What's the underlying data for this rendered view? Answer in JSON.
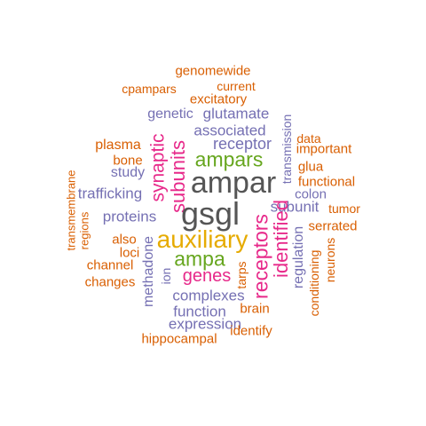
{
  "words": [
    {
      "text": "genomewide",
      "tier": "c1"
    },
    {
      "text": "cpampars",
      "tier": "c1"
    },
    {
      "text": "current",
      "tier": "c1"
    },
    {
      "text": "excitatory",
      "tier": "c1"
    },
    {
      "text": "genetic",
      "tier": "c2"
    },
    {
      "text": "glutamate",
      "tier": "c2"
    },
    {
      "text": "associated",
      "tier": "c2"
    },
    {
      "text": "transmission",
      "tier": "c2"
    },
    {
      "text": "data",
      "tier": "c1"
    },
    {
      "text": "plasma",
      "tier": "c1"
    },
    {
      "text": "receptor",
      "tier": "c2"
    },
    {
      "text": "important",
      "tier": "c1"
    },
    {
      "text": "bone",
      "tier": "c1"
    },
    {
      "text": "ampars",
      "tier": "c4"
    },
    {
      "text": "glua",
      "tier": "c1"
    },
    {
      "text": "synaptic",
      "tier": "c3"
    },
    {
      "text": "study",
      "tier": "c2"
    },
    {
      "text": "transmembrane",
      "tier": "c1"
    },
    {
      "text": "ampar",
      "tier": "c6"
    },
    {
      "text": "functional",
      "tier": "c1"
    },
    {
      "text": "subunits",
      "tier": "c3"
    },
    {
      "text": "trafficking",
      "tier": "c2"
    },
    {
      "text": "colon",
      "tier": "c2"
    },
    {
      "text": "subunit",
      "tier": "c2"
    },
    {
      "text": "tumor",
      "tier": "c1"
    },
    {
      "text": "regions",
      "tier": "c1"
    },
    {
      "text": "proteins",
      "tier": "c2"
    },
    {
      "text": "gsgl",
      "tier": "c6"
    },
    {
      "text": "identified",
      "tier": "c3"
    },
    {
      "text": "serrated",
      "tier": "c1"
    },
    {
      "text": "also",
      "tier": "c1"
    },
    {
      "text": "auxiliary",
      "tier": "c5"
    },
    {
      "text": "receptors",
      "tier": "c3"
    },
    {
      "text": "regulation",
      "tier": "c2"
    },
    {
      "text": "loci",
      "tier": "c1"
    },
    {
      "text": "methadone",
      "tier": "c2"
    },
    {
      "text": "ampa",
      "tier": "c4"
    },
    {
      "text": "channel",
      "tier": "c1"
    },
    {
      "text": "genes",
      "tier": "c3"
    },
    {
      "text": "neurons",
      "tier": "c1"
    },
    {
      "text": "ion",
      "tier": "c2"
    },
    {
      "text": "tarps",
      "tier": "c1"
    },
    {
      "text": "conditioning",
      "tier": "c1"
    },
    {
      "text": "changes",
      "tier": "c1"
    },
    {
      "text": "complexes",
      "tier": "c2"
    },
    {
      "text": "function",
      "tier": "c2"
    },
    {
      "text": "brain",
      "tier": "c1"
    },
    {
      "text": "expression",
      "tier": "c2"
    },
    {
      "text": "identify",
      "tier": "c1"
    },
    {
      "text": "hippocampal",
      "tier": "c1"
    }
  ]
}
